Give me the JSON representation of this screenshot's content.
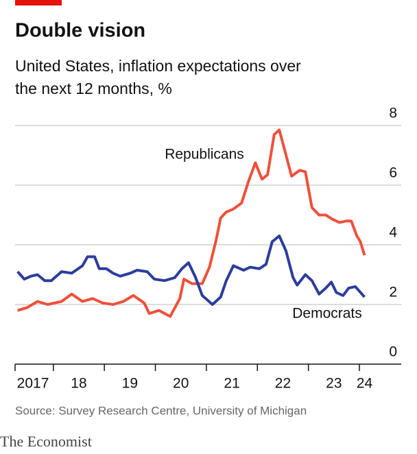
{
  "chart_data": {
    "type": "line",
    "title": "Double vision",
    "subtitle": "United States, inflation expectations over the next 12 months, %",
    "source": "Source: Survey Research Centre, University of Michigan",
    "brand": "The Economist",
    "xlim": [
      2017.25,
      2024.82
    ],
    "xticks": [
      {
        "value": 2017.6,
        "label": "2017"
      },
      {
        "value": 2018.5,
        "label": "18"
      },
      {
        "value": 2019.5,
        "label": "19"
      },
      {
        "value": 2020.5,
        "label": "20"
      },
      {
        "value": 2021.5,
        "label": "21"
      },
      {
        "value": 2022.5,
        "label": "22"
      },
      {
        "value": 2023.5,
        "label": "23"
      },
      {
        "value": 2024.1,
        "label": "24"
      }
    ],
    "ylim": [
      0,
      8
    ],
    "yticks": [
      0,
      2,
      4,
      6,
      8
    ],
    "grid": true,
    "series": [
      {
        "name": "Republicans",
        "color": "#f0503c",
        "x": [
          2017.3,
          2017.49,
          2017.69,
          2017.89,
          2018.16,
          2018.36,
          2018.57,
          2018.77,
          2018.97,
          2019.17,
          2019.37,
          2019.57,
          2019.78,
          2019.88,
          2020.07,
          2020.29,
          2020.48,
          2020.56,
          2020.72,
          2020.92,
          2021.06,
          2021.19,
          2021.28,
          2021.39,
          2021.53,
          2021.69,
          2021.82,
          2021.96,
          2022.09,
          2022.2,
          2022.33,
          2022.43,
          2022.54,
          2022.67,
          2022.83,
          2022.94,
          2023.07,
          2023.21,
          2023.34,
          2023.48,
          2023.61,
          2023.75,
          2023.84,
          2023.95,
          2024.02,
          2024.1
        ],
        "values": [
          1.8,
          1.9,
          2.1,
          2.0,
          2.1,
          2.35,
          2.1,
          2.2,
          2.05,
          2.0,
          2.1,
          2.3,
          2.05,
          1.7,
          1.8,
          1.6,
          2.2,
          2.85,
          2.7,
          2.7,
          3.25,
          4.15,
          4.9,
          5.1,
          5.2,
          5.4,
          6.1,
          6.75,
          6.2,
          6.35,
          7.7,
          7.85,
          7.15,
          6.3,
          6.5,
          6.45,
          5.25,
          5.0,
          5.0,
          4.85,
          4.75,
          4.8,
          4.8,
          4.3,
          4.1,
          3.65
        ]
      },
      {
        "name": "Democrats",
        "color": "#2c3d9c",
        "x": [
          2017.3,
          2017.43,
          2017.56,
          2017.69,
          2017.83,
          2017.96,
          2018.16,
          2018.36,
          2018.57,
          2018.67,
          2018.81,
          2018.9,
          2019.04,
          2019.17,
          2019.31,
          2019.51,
          2019.64,
          2019.84,
          2019.98,
          2020.18,
          2020.38,
          2020.52,
          2020.65,
          2020.79,
          2020.92,
          2021.12,
          2021.28,
          2021.39,
          2021.53,
          2021.73,
          2021.86,
          2022.04,
          2022.17,
          2022.29,
          2022.43,
          2022.56,
          2022.7,
          2022.78,
          2022.94,
          2023.07,
          2023.21,
          2023.34,
          2023.45,
          2023.55,
          2023.68,
          2023.79,
          2023.92,
          2024.1
        ],
        "values": [
          3.1,
          2.85,
          2.95,
          3.0,
          2.8,
          2.8,
          3.1,
          3.05,
          3.3,
          3.6,
          3.6,
          3.2,
          3.2,
          3.05,
          2.95,
          3.05,
          3.15,
          3.1,
          2.85,
          2.8,
          2.9,
          3.2,
          3.4,
          2.9,
          2.3,
          2.0,
          2.25,
          2.8,
          3.3,
          3.15,
          3.25,
          3.2,
          3.35,
          4.1,
          4.3,
          3.8,
          2.9,
          2.65,
          3.0,
          2.8,
          2.35,
          2.55,
          2.75,
          2.4,
          2.3,
          2.55,
          2.6,
          2.25
        ]
      }
    ]
  }
}
